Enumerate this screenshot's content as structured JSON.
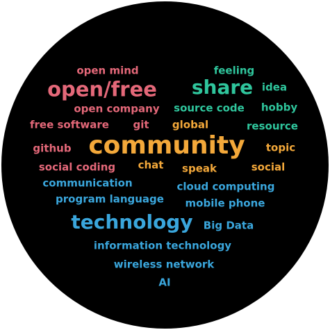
{
  "cloud": {
    "colors": {
      "background": "#ffffff",
      "disc": "#000000",
      "pink": "#e46879",
      "green": "#2fc59c",
      "orange": "#f3a83a",
      "blue": "#3aa6dc"
    },
    "words": [
      {
        "text": "open mind",
        "color": "pink"
      },
      {
        "text": "feeling",
        "color": "green"
      },
      {
        "text": "open/free",
        "color": "pink"
      },
      {
        "text": "share",
        "color": "green"
      },
      {
        "text": "idea",
        "color": "green"
      },
      {
        "text": "open company",
        "color": "pink"
      },
      {
        "text": "source code",
        "color": "green"
      },
      {
        "text": "hobby",
        "color": "green"
      },
      {
        "text": "free software",
        "color": "pink"
      },
      {
        "text": "git",
        "color": "pink"
      },
      {
        "text": "global",
        "color": "orange"
      },
      {
        "text": "resource",
        "color": "green"
      },
      {
        "text": "github",
        "color": "pink"
      },
      {
        "text": "community",
        "color": "orange"
      },
      {
        "text": "topic",
        "color": "orange"
      },
      {
        "text": "social coding",
        "color": "pink"
      },
      {
        "text": "chat",
        "color": "orange"
      },
      {
        "text": "speak",
        "color": "orange"
      },
      {
        "text": "social",
        "color": "orange"
      },
      {
        "text": "communication",
        "color": "blue"
      },
      {
        "text": "cloud computing",
        "color": "blue"
      },
      {
        "text": "program language",
        "color": "blue"
      },
      {
        "text": "mobile phone",
        "color": "blue"
      },
      {
        "text": "technology",
        "color": "blue"
      },
      {
        "text": "Big Data",
        "color": "blue"
      },
      {
        "text": "information technology",
        "color": "blue"
      },
      {
        "text": "wireless network",
        "color": "blue"
      },
      {
        "text": "AI",
        "color": "blue"
      }
    ]
  }
}
